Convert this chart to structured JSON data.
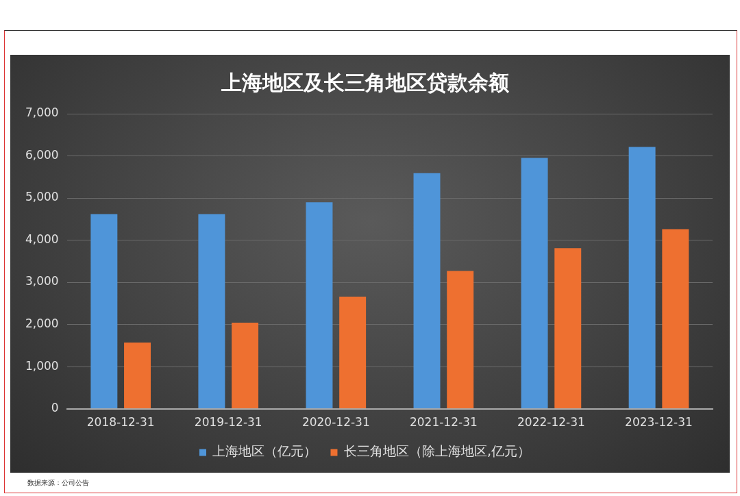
{
  "chart_data": {
    "type": "bar",
    "title": "上海地区及长三角地区贷款余额",
    "categories": [
      "2018-12-31",
      "2019-12-31",
      "2020-12-31",
      "2021-12-31",
      "2022-12-31",
      "2023-12-31"
    ],
    "series": [
      {
        "name": "上海地区（亿元）",
        "color": "#4f95d9",
        "values": [
          4620,
          4620,
          4900,
          5590,
          5950,
          6210
        ]
      },
      {
        "name": "长三角地区（除上海地区,亿元）",
        "color": "#ee7030",
        "values": [
          1570,
          2040,
          2660,
          3270,
          3810,
          4260
        ]
      }
    ],
    "ylim": [
      0,
      7000
    ],
    "yticks": [
      0,
      {
        "value": 1000,
        "label": "1,000"
      },
      {
        "value": 2000,
        "label": "2,000"
      },
      {
        "value": 3000,
        "label": "3,000"
      },
      {
        "value": 4000,
        "label": "4,000"
      },
      {
        "value": 5000,
        "label": "5,000"
      },
      {
        "value": 6000,
        "label": "6,000"
      },
      {
        "value": 7000,
        "label": "7,000"
      }
    ],
    "grid": "y",
    "legend": "bottom",
    "annotations": [
      "数据来源：公司公告"
    ]
  }
}
